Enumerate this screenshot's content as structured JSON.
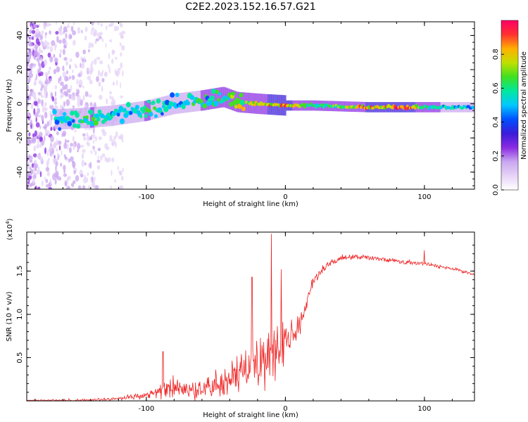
{
  "title": "C2E2.2023.152.16.57.G21",
  "colors": {
    "snr_line": "#ee2222",
    "colormap": [
      "#ffffff",
      "#e6d4f7",
      "#c9a6f0",
      "#8a2be2",
      "#3a1bd9",
      "#0050ff",
      "#00c8ff",
      "#00e8a0",
      "#40e020",
      "#c0e000",
      "#ffb000",
      "#ff3030",
      "#ff0066"
    ]
  },
  "chart_data": [
    {
      "type": "heatmap",
      "xlabel": "Height of straight line (km)",
      "ylabel": "Frequency (Hz)",
      "xlim": [
        -186,
        136
      ],
      "ylim": [
        -50,
        48
      ],
      "xticks": [
        {
          "v": -100,
          "label": "-100"
        },
        {
          "v": 0,
          "label": "0"
        },
        {
          "v": 100,
          "label": "100"
        }
      ],
      "yticks": [
        {
          "v": 40,
          "label": "40"
        },
        {
          "v": 20,
          "label": "20"
        },
        {
          "v": 0,
          "label": "0"
        },
        {
          "v": -20,
          "label": "-20"
        },
        {
          "v": -40,
          "label": "-40"
        }
      ],
      "colorbar": {
        "label": "Normalized spectral amplitude",
        "range": [
          0,
          1
        ],
        "ticks": [
          {
            "v": 0.0,
            "label": "0.0"
          },
          {
            "v": 0.2,
            "label": "0.2"
          },
          {
            "v": 0.4,
            "label": "0.4"
          },
          {
            "v": 0.6,
            "label": "0.6"
          },
          {
            "v": 0.8,
            "label": "0.8"
          }
        ]
      },
      "ridge": [
        {
          "x": -160,
          "f": -9,
          "a": 0.55
        },
        {
          "x": -140,
          "f": -8,
          "a": 0.6
        },
        {
          "x": -125,
          "f": -7,
          "a": 0.55
        },
        {
          "x": -100,
          "f": -4,
          "a": 0.6
        },
        {
          "x": -80,
          "f": 0,
          "a": 0.55
        },
        {
          "x": -60,
          "f": 2,
          "a": 0.6
        },
        {
          "x": -45,
          "f": 4,
          "a": 0.6
        },
        {
          "x": -35,
          "f": 1,
          "a": 0.75
        },
        {
          "x": -20,
          "f": 0,
          "a": 0.8
        },
        {
          "x": 0,
          "f": -1,
          "a": 0.9
        },
        {
          "x": 20,
          "f": -1,
          "a": 0.6
        },
        {
          "x": 60,
          "f": -2,
          "a": 0.85
        },
        {
          "x": 90,
          "f": -2,
          "a": 0.9
        },
        {
          "x": 100,
          "f": -2,
          "a": 0.65
        },
        {
          "x": 120,
          "f": -2,
          "a": 0.55
        },
        {
          "x": 136,
          "f": -2,
          "a": 0.5
        }
      ]
    },
    {
      "type": "line",
      "xlabel": "Height of straight line (km)",
      "ylabel": "SNR (10 * v/v)",
      "y_multiplier": "(x10^4)",
      "xlim": [
        -186,
        136
      ],
      "ylim": [
        0,
        1.95
      ],
      "xticks": [
        {
          "v": -100,
          "label": "-100"
        },
        {
          "v": 0,
          "label": "0"
        },
        {
          "v": 100,
          "label": "100"
        }
      ],
      "yticks": [
        {
          "v": 0.5,
          "label": "0.5"
        },
        {
          "v": 1.0,
          "label": "1.0"
        },
        {
          "v": 1.5,
          "label": "1.5"
        }
      ],
      "envelope": {
        "x": [
          -186,
          -140,
          -120,
          -100,
          -90,
          -80,
          -70,
          -60,
          -50,
          -40,
          -30,
          -20,
          -10,
          0,
          10,
          15,
          20,
          30,
          40,
          60,
          80,
          100,
          120,
          136
        ],
        "y": [
          0.01,
          0.02,
          0.04,
          0.1,
          0.2,
          0.25,
          0.22,
          0.25,
          0.3,
          0.4,
          0.55,
          0.7,
          0.8,
          0.85,
          0.95,
          1.2,
          1.45,
          1.6,
          1.68,
          1.68,
          1.64,
          1.6,
          1.55,
          1.48
        ]
      },
      "noise": {
        "x": [
          -186,
          -120,
          -100,
          -90,
          -60,
          -40,
          -20,
          -5,
          0,
          10,
          20,
          40,
          136
        ],
        "y": [
          0.005,
          0.02,
          0.04,
          0.1,
          0.12,
          0.18,
          0.28,
          0.3,
          0.22,
          0.12,
          0.06,
          0.03,
          0.02
        ]
      },
      "spikes": [
        {
          "x": -88,
          "y": 0.57
        },
        {
          "x": -24,
          "y": 1.43
        },
        {
          "x": -10,
          "y": 1.93
        },
        {
          "x": -3,
          "y": 1.52
        },
        {
          "x": 100,
          "y": 1.74
        }
      ],
      "samples": 820
    }
  ]
}
